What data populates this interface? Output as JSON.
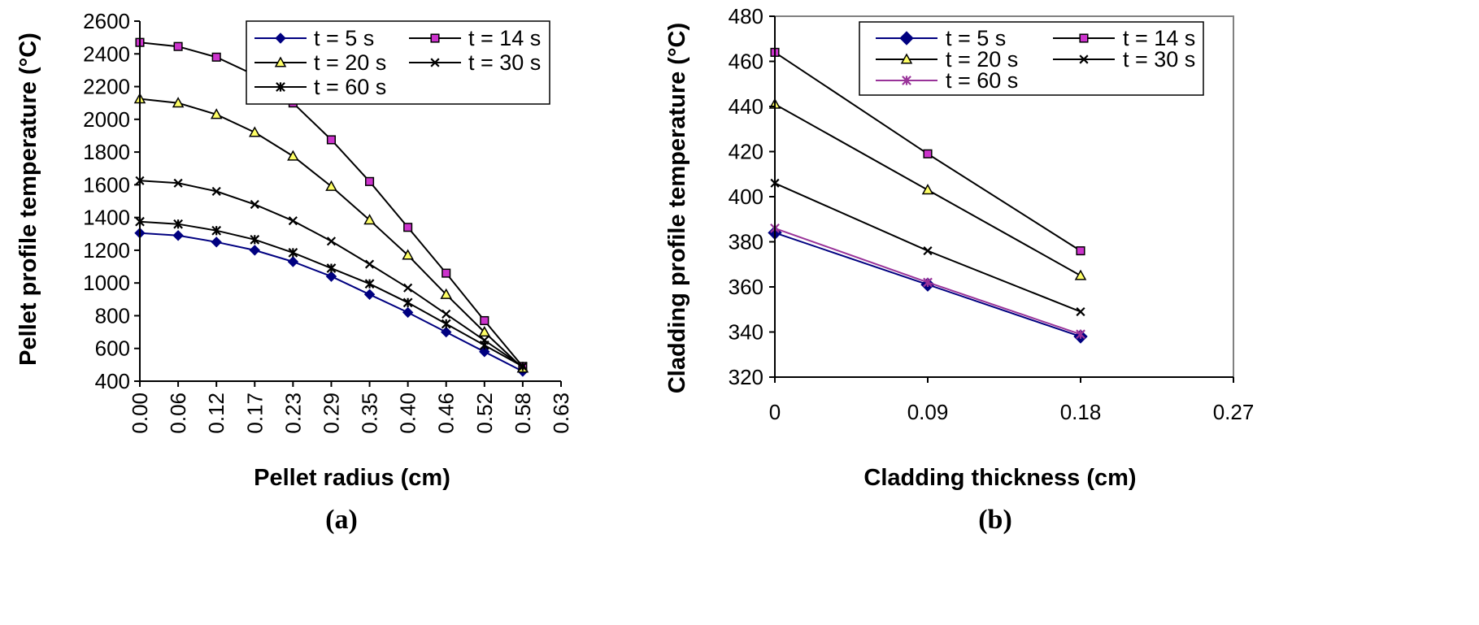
{
  "chart_data": [
    {
      "type": "line",
      "panel_label": "(a)",
      "xlabel": "Pellet radius (cm)",
      "ylabel": "Pellet profile temperature (°C)",
      "ylim": [
        400,
        2600
      ],
      "yticks": [
        400,
        600,
        800,
        1000,
        1200,
        1400,
        1600,
        1800,
        2000,
        2200,
        2400,
        2600
      ],
      "x": [
        0.0,
        0.06,
        0.12,
        0.17,
        0.23,
        0.29,
        0.35,
        0.4,
        0.46,
        0.52,
        0.58
      ],
      "xtick_labels": [
        "0.00",
        "0.06",
        "0.12",
        "0.17",
        "0.23",
        "0.29",
        "0.35",
        "0.40",
        "0.46",
        "0.52",
        "0.58",
        "0.63"
      ],
      "grid": false,
      "legend_position": "top-right",
      "series": [
        {
          "name": "t = 5 s",
          "marker": "diamond",
          "color": "#000080",
          "marker_color": "#000080",
          "values": [
            1305,
            1290,
            1250,
            1200,
            1130,
            1040,
            930,
            820,
            700,
            580,
            460
          ]
        },
        {
          "name": "t = 14 s",
          "marker": "square",
          "color": "#000000",
          "marker_color": "#cc33cc",
          "values": [
            2470,
            2445,
            2380,
            2270,
            2100,
            1875,
            1620,
            1340,
            1060,
            770,
            490
          ]
        },
        {
          "name": "t = 20 s",
          "marker": "triangle",
          "color": "#000000",
          "marker_color": "#ffff66",
          "values": [
            2125,
            2100,
            2030,
            1920,
            1775,
            1590,
            1385,
            1170,
            930,
            700,
            480
          ]
        },
        {
          "name": "t = 30 s",
          "marker": "x",
          "color": "#000000",
          "marker_color": "#000000",
          "values": [
            1625,
            1610,
            1560,
            1480,
            1380,
            1255,
            1115,
            970,
            810,
            650,
            490
          ]
        },
        {
          "name": "t = 60 s",
          "marker": "star",
          "color": "#000000",
          "marker_color": "#000000",
          "values": [
            1375,
            1360,
            1320,
            1265,
            1185,
            1090,
            995,
            880,
            750,
            620,
            490
          ]
        }
      ]
    },
    {
      "type": "line",
      "panel_label": "(b)",
      "xlabel": "Cladding thickness (cm)",
      "ylabel": "Cladding profile temperature (°C)",
      "ylim": [
        320,
        480
      ],
      "yticks": [
        320,
        340,
        360,
        380,
        400,
        420,
        440,
        460,
        480
      ],
      "xlim": [
        0,
        0.27
      ],
      "x": [
        0,
        0.09,
        0.18
      ],
      "xtick_values": [
        0,
        0.09,
        0.18,
        0.27
      ],
      "xtick_labels": [
        "0",
        "0.09",
        "0.18",
        "0.27"
      ],
      "grid": false,
      "legend_position": "top-right",
      "series": [
        {
          "name": "t = 5 s",
          "marker": "diamond",
          "color": "#000080",
          "marker_color": "#000080",
          "values": [
            384,
            361,
            338
          ]
        },
        {
          "name": "t = 14 s",
          "marker": "square",
          "color": "#000000",
          "marker_color": "#cc33cc",
          "values": [
            464,
            419,
            376
          ]
        },
        {
          "name": "t = 20 s",
          "marker": "triangle",
          "color": "#000000",
          "marker_color": "#ffff66",
          "values": [
            441,
            403,
            365
          ]
        },
        {
          "name": "t = 30 s",
          "marker": "x",
          "color": "#000000",
          "marker_color": "#000000",
          "values": [
            406,
            376,
            349
          ]
        },
        {
          "name": "t = 60 s",
          "marker": "star",
          "color": "#993399",
          "marker_color": "#993399",
          "values": [
            386,
            362,
            339
          ]
        }
      ]
    }
  ]
}
